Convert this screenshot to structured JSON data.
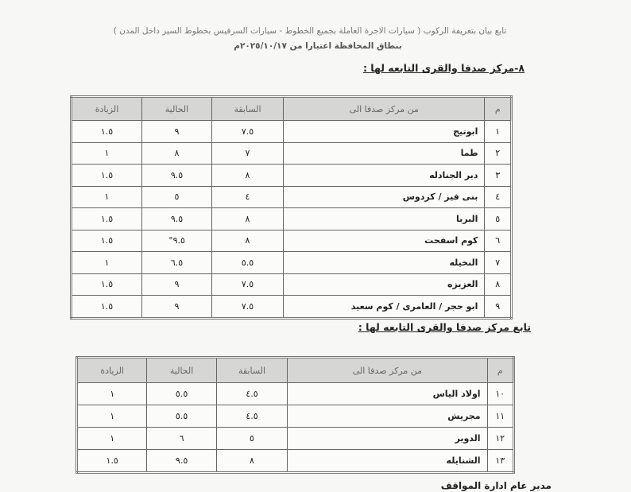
{
  "header": {
    "line1": "تابع بيان بتعريفة الركوب ( سيارات الاجرة العاملة بجميع الخطوط - سيارات السرفيس بخطوط السير داخل المدن )",
    "line2": "بنطاق المحافظة اعتبارا من ٢٠٢٥/١٠/١٧م"
  },
  "section1": {
    "title": "٨-مركز صدفا والقرى التابعه لها :",
    "columns": [
      "م",
      "من مركز صدفا الى",
      "السابقة",
      "الحالية",
      "الزيادة"
    ],
    "rows": [
      [
        "١",
        "ابوتيج",
        "٧.٥",
        "٩",
        "١.٥"
      ],
      [
        "٢",
        "طما",
        "٧",
        "٨",
        "١"
      ],
      [
        "٣",
        "دير الجنادله",
        "٨",
        "٩.٥",
        "١.٥"
      ],
      [
        "٤",
        "بنى فيز / كردوس",
        "٤",
        "٥",
        "١"
      ],
      [
        "٥",
        "البربا",
        "٨",
        "٩.٥",
        "١.٥"
      ],
      [
        "٦",
        "كوم اسفحت",
        "٨",
        "٩.٥°",
        "١.٥"
      ],
      [
        "٧",
        "النخيله",
        "٥.٥",
        "٦.٥",
        "١"
      ],
      [
        "٨",
        "العزيزه",
        "٧.٥",
        "٩",
        "١.٥"
      ],
      [
        "٩",
        "ابو حجر / العامرى / كوم سعيد",
        "٧.٥",
        "٩",
        "١.٥"
      ]
    ]
  },
  "section2": {
    "title": "تابع مركز صدفا والقرى التابعه لها :",
    "columns": [
      "م",
      "من مركز صدفا الى",
      "السابقة",
      "الحالية",
      "الزيادة"
    ],
    "rows": [
      [
        "١٠",
        "اولاد الياس",
        "٤.٥",
        "٥.٥",
        "١"
      ],
      [
        "١١",
        "مجريش",
        "٤.٥",
        "٥.٥",
        "١"
      ],
      [
        "١٢",
        "الدوير",
        "٥",
        "٦",
        "١"
      ],
      [
        "١٣",
        "الشنايله",
        "٨",
        "٩.٥",
        "١.٥"
      ]
    ]
  },
  "footer": {
    "signature_title": "مدير عام ادارة المواقف"
  }
}
